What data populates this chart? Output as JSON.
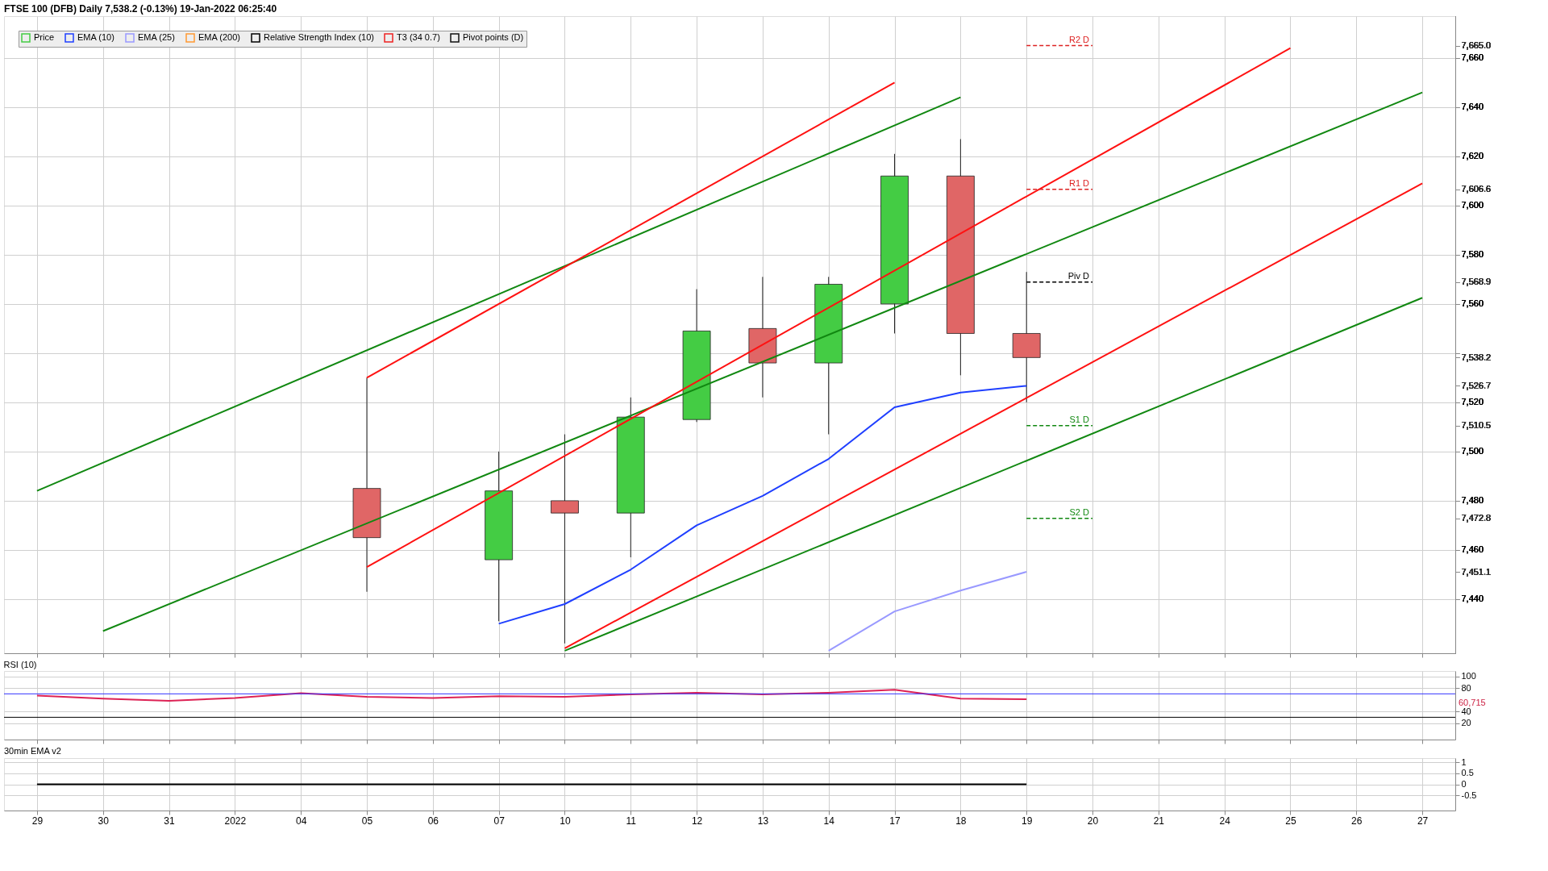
{
  "chart_data": [
    {
      "type": "candlestick",
      "title": "FTSE 100 (DFB) Daily 7,538.2 (-0.13%) 19-Jan-2022 06:25:40",
      "categories": [
        "29",
        "30",
        "31",
        "2022",
        "04",
        "05",
        "06",
        "07",
        "10",
        "11",
        "12",
        "13",
        "14",
        "17",
        "18",
        "19",
        "20",
        "21",
        "24",
        "25",
        "26",
        "27"
      ],
      "ylim": [
        7418,
        7677
      ],
      "yticks": [
        {
          "value": 7440,
          "label": "7,440"
        },
        {
          "value": 7460,
          "label": "7,460"
        },
        {
          "value": 7480,
          "label": "7,480"
        },
        {
          "value": 7500,
          "label": "7,500"
        },
        {
          "value": 7520,
          "label": "7,520"
        },
        {
          "value": 7540,
          "label": null
        },
        {
          "value": 7560,
          "label": "7,560"
        },
        {
          "value": 7580,
          "label": "7,580"
        },
        {
          "value": 7600,
          "label": "7,600"
        },
        {
          "value": 7620,
          "label": "7,620"
        },
        {
          "value": 7640,
          "label": "7,640"
        },
        {
          "value": 7660,
          "label": "7,660"
        }
      ],
      "y2lim": [
        7418,
        7677
      ],
      "y2ticks": [
        {
          "value": 7665.0,
          "label": "7,665.0"
        },
        {
          "value": 7606.6,
          "label": "7,606.6"
        },
        {
          "value": 7568.9,
          "label": "7,568.9"
        },
        {
          "value": 7538.2,
          "label": "7,538.2"
        },
        {
          "value": 7526.7,
          "label": "7,526.7"
        },
        {
          "value": 7510.5,
          "label": "7,510.5"
        },
        {
          "value": 7472.8,
          "label": "7,472.8"
        },
        {
          "value": 7451.1,
          "label": "7,451.1"
        }
      ],
      "tick_labels": "y",
      "grid": true,
      "legend": "top left",
      "series": [
        {
          "name": "Price",
          "color": "#44cc44",
          "ohlc": [
            null,
            null,
            null,
            null,
            null,
            [
              7485,
              7530,
              7443,
              7465
            ],
            null,
            [
              7456,
              7500,
              7431,
              7484
            ],
            [
              7480,
              7507,
              7422,
              7475
            ],
            [
              7475,
              7522,
              7457,
              7514
            ],
            [
              7513,
              7566,
              7512,
              7549
            ],
            [
              7550,
              7571,
              7522,
              7536
            ],
            [
              7536,
              7571,
              7507,
              7568
            ],
            [
              7560,
              7621,
              7548,
              7612
            ],
            [
              7612,
              7627,
              7531,
              7548
            ],
            [
              7548,
              7573,
              7520,
              7538.2
            ],
            null,
            null,
            null,
            null,
            null,
            null
          ],
          "colors": [
            null,
            null,
            null,
            null,
            null,
            "#e06666",
            null,
            "#44cc44",
            "#e06666",
            "#44cc44",
            "#44cc44",
            "#e06666",
            "#44cc44",
            "#44cc44",
            "#e06666",
            "#e06666",
            null,
            null,
            null,
            null,
            null,
            null
          ]
        },
        {
          "name": "EMA (10)",
          "type": "line",
          "color": "#1f3fff",
          "values": [
            null,
            null,
            null,
            null,
            null,
            null,
            null,
            7430,
            7438,
            7452,
            7470,
            7482,
            7497,
            7518,
            7524,
            7526.7,
            null,
            null,
            null,
            null,
            null,
            null
          ]
        },
        {
          "name": "EMA (25)",
          "type": "line",
          "color": "#9999ff",
          "values": [
            null,
            null,
            null,
            null,
            null,
            null,
            null,
            null,
            null,
            null,
            null,
            null,
            7419,
            7435,
            7443.5,
            7451.1,
            null,
            null,
            null,
            null,
            null,
            null
          ]
        },
        {
          "name": "EMA (200)",
          "type": "line",
          "color": "#ff9933",
          "values": [
            null,
            null,
            null,
            null,
            null,
            null,
            null,
            null,
            null,
            null,
            null,
            null,
            null,
            null,
            null,
            null,
            null,
            null,
            null,
            null,
            null,
            null
          ]
        },
        {
          "name": "Relative Strength Index (10)",
          "type": "line",
          "color": "#000000",
          "values": [
            null,
            null,
            null,
            null,
            null,
            null,
            null,
            null,
            null,
            null,
            null,
            null,
            null,
            null,
            null,
            null,
            null,
            null,
            null,
            null,
            null,
            null
          ]
        },
        {
          "name": "T3 (34 0.7)",
          "type": "line",
          "color": "#ee2222",
          "values": [
            null,
            null,
            null,
            null,
            null,
            null,
            null,
            null,
            null,
            null,
            null,
            null,
            null,
            null,
            null,
            null,
            null,
            null,
            null,
            null,
            null,
            null
          ]
        },
        {
          "name": "Pivot points (D)",
          "type": "line",
          "color": "#111111",
          "values": [
            null,
            null,
            null,
            null,
            null,
            null,
            null,
            null,
            null,
            null,
            null,
            null,
            null,
            null,
            null,
            null,
            null,
            null,
            null,
            null,
            null,
            null
          ]
        },
        {
          "type": "line",
          "color": "#118811",
          "values": [
            7484,
            null,
            null,
            null,
            null,
            null,
            null,
            null,
            null,
            null,
            null,
            null,
            null,
            null,
            7644,
            null,
            null,
            null,
            null,
            null,
            null,
            null
          ]
        },
        {
          "type": "line",
          "color": "#118811",
          "values": [
            null,
            7427,
            null,
            null,
            null,
            null,
            null,
            null,
            null,
            null,
            null,
            null,
            null,
            null,
            null,
            null,
            null,
            null,
            null,
            null,
            null,
            7646
          ]
        },
        {
          "type": "line",
          "color": "#118811",
          "values": [
            null,
            null,
            null,
            null,
            null,
            null,
            null,
            null,
            7419,
            null,
            null,
            null,
            null,
            null,
            null,
            null,
            null,
            null,
            null,
            null,
            null,
            7562.5
          ]
        },
        {
          "type": "line",
          "color": "#ff1111",
          "values": [
            null,
            null,
            null,
            null,
            null,
            7530,
            null,
            null,
            null,
            null,
            null,
            null,
            null,
            7650,
            null,
            null,
            null,
            null,
            null,
            null,
            null,
            null
          ]
        },
        {
          "type": "line",
          "color": "#ff1111",
          "values": [
            null,
            null,
            null,
            null,
            null,
            7453,
            null,
            null,
            null,
            null,
            null,
            null,
            null,
            null,
            null,
            null,
            null,
            null,
            null,
            7664,
            null,
            null
          ]
        },
        {
          "type": "line",
          "color": "#ff1111",
          "values": [
            null,
            null,
            null,
            null,
            null,
            null,
            null,
            null,
            7420,
            null,
            null,
            null,
            null,
            null,
            null,
            null,
            null,
            null,
            null,
            null,
            null,
            7609
          ]
        }
      ],
      "ref_lines": [
        {
          "axis": "y2",
          "value": 7665.0,
          "label": "R2 D",
          "color": "#dd2222",
          "line_style": "dashed"
        },
        {
          "axis": "y2",
          "value": 7606.6,
          "label": "R1 D",
          "color": "#dd2222",
          "line_style": "dashed"
        },
        {
          "axis": "y2",
          "value": 7568.9,
          "label": "Piv D",
          "color": "#000000",
          "line_style": "dashed"
        },
        {
          "axis": "y2",
          "value": 7510.5,
          "label": "S1 D",
          "color": "#118811",
          "line_style": "dashed"
        },
        {
          "axis": "y2",
          "value": 7472.8,
          "label": "S2 D",
          "color": "#118811",
          "line_style": "dashed"
        }
      ]
    },
    {
      "type": "line",
      "title": "RSI (10)",
      "categories": [
        "29",
        "30",
        "31",
        "2022",
        "04",
        "05",
        "06",
        "07",
        "10",
        "11",
        "12",
        "13",
        "14",
        "17",
        "18",
        "19",
        "20",
        "21",
        "24",
        "25",
        "26",
        "27"
      ],
      "ylim": [
        -8,
        109
      ],
      "yticks": [
        20,
        40,
        80,
        100
      ],
      "tick_labels": "y",
      "grid": true,
      "annotations": [
        "60,715"
      ],
      "series": [
        {
          "color": "#dd2255",
          "values": [
            67,
            62,
            58,
            63,
            71,
            65,
            63,
            66,
            65,
            69,
            72,
            69,
            72,
            77,
            62,
            60.715,
            null,
            null,
            null,
            null,
            null,
            null
          ]
        }
      ],
      "ref_lines": [
        {
          "axis": "y",
          "value": 70,
          "color": "#3333ff",
          "line_style": "solid"
        },
        {
          "axis": "y",
          "value": 30,
          "color": "#000000",
          "line_style": "solid"
        }
      ]
    },
    {
      "type": "line",
      "title": "30min EMA v2",
      "categories": [
        "29",
        "30",
        "31",
        "2022",
        "04",
        "05",
        "06",
        "07",
        "10",
        "11",
        "12",
        "13",
        "14",
        "17",
        "18",
        "19",
        "20",
        "21",
        "24",
        "25",
        "26",
        "27"
      ],
      "ylim": [
        -1.2,
        1.2
      ],
      "yticks": [
        {
          "value": -0.5,
          "label": "-0.5"
        },
        {
          "value": 0,
          "label": "0"
        },
        {
          "value": 0.5,
          "label": "0.5"
        },
        {
          "value": 1,
          "label": "1"
        }
      ],
      "grid": true,
      "series": [
        {
          "color": "#000000",
          "values": [
            0,
            0,
            0,
            0,
            0,
            0,
            0,
            0,
            0,
            0,
            0,
            0,
            0,
            0,
            0,
            0,
            null,
            null,
            null,
            null,
            null,
            null
          ]
        }
      ]
    }
  ]
}
